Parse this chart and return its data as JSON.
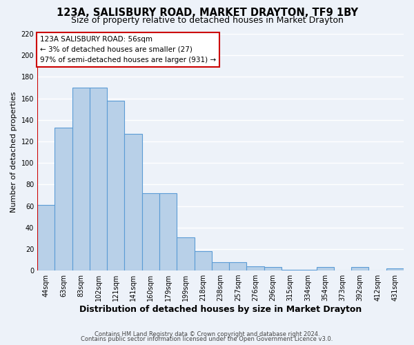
{
  "title": "123A, SALISBURY ROAD, MARKET DRAYTON, TF9 1BY",
  "subtitle": "Size of property relative to detached houses in Market Drayton",
  "xlabel": "Distribution of detached houses by size in Market Drayton",
  "ylabel": "Number of detached properties",
  "footnote1": "Contains HM Land Registry data © Crown copyright and database right 2024.",
  "footnote2": "Contains public sector information licensed under the Open Government Licence v3.0.",
  "categories": [
    "44sqm",
    "63sqm",
    "83sqm",
    "102sqm",
    "121sqm",
    "141sqm",
    "160sqm",
    "179sqm",
    "199sqm",
    "218sqm",
    "238sqm",
    "257sqm",
    "276sqm",
    "296sqm",
    "315sqm",
    "334sqm",
    "354sqm",
    "373sqm",
    "392sqm",
    "412sqm",
    "431sqm"
  ],
  "values": [
    61,
    133,
    170,
    170,
    158,
    127,
    72,
    72,
    31,
    18,
    8,
    8,
    4,
    3,
    1,
    1,
    3,
    0,
    3,
    0,
    2
  ],
  "bar_color": "#b8d0e8",
  "bar_edge_color": "#5b9bd5",
  "subject_label": "123A SALISBURY ROAD: 56sqm",
  "subject_line1": "← 3% of detached houses are smaller (27)",
  "subject_line2": "97% of semi-detached houses are larger (931) →",
  "annotation_box_color": "#ffffff",
  "annotation_box_edge": "#cc0000",
  "subject_line_color": "#cc0000",
  "ylim": [
    0,
    220
  ],
  "yticks": [
    0,
    20,
    40,
    60,
    80,
    100,
    120,
    140,
    160,
    180,
    200,
    220
  ],
  "bg_color": "#edf2f9",
  "grid_color": "#ffffff",
  "title_fontsize": 10.5,
  "subtitle_fontsize": 9,
  "xlabel_fontsize": 9,
  "ylabel_fontsize": 8,
  "tick_fontsize": 7,
  "annotation_fontsize": 7.5,
  "footnote_fontsize": 6
}
